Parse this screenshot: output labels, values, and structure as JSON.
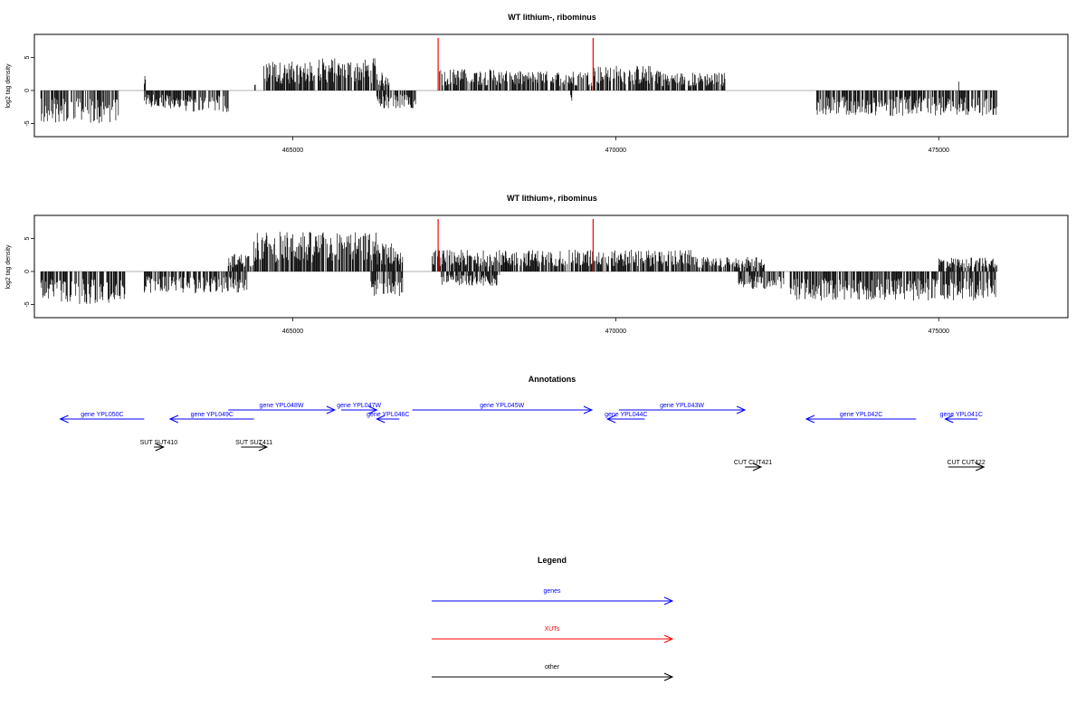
{
  "chart_data": [
    {
      "type": "bar",
      "title": "WT lithium-, ribominus",
      "ylabel": "log2 tag density",
      "xlabel": "",
      "xlim": [
        461000,
        477000
      ],
      "ylim": [
        -7,
        8.5
      ],
      "yticks": [
        -5,
        0,
        5
      ],
      "xticks": [
        465000,
        470000,
        475000
      ],
      "markers": [
        467250,
        469650
      ],
      "marker_color": "#ff0000",
      "series": [
        {
          "sign": "positive",
          "segments": [
            {
              "x0": 461100,
              "x1": 461700,
              "amp": 0.0
            },
            {
              "x0": 462700,
              "x1": 462720,
              "amp": 2.0
            },
            {
              "x0": 464400,
              "x1": 464420,
              "amp": 1.0
            },
            {
              "x0": 464550,
              "x1": 465400,
              "amp": 4.0
            },
            {
              "x0": 465400,
              "x1": 466300,
              "amp": 4.5
            },
            {
              "x0": 466300,
              "x1": 466500,
              "amp": 2.5
            },
            {
              "x0": 467250,
              "x1": 468300,
              "amp": 3.0
            },
            {
              "x0": 468300,
              "x1": 469650,
              "amp": 2.7
            },
            {
              "x0": 469650,
              "x1": 470700,
              "amp": 3.5
            },
            {
              "x0": 470700,
              "x1": 471700,
              "amp": 2.5
            },
            {
              "x0": 472300,
              "x1": 472320,
              "amp": 1.0
            },
            {
              "x0": 475300,
              "x1": 475320,
              "amp": 1.5
            }
          ]
        },
        {
          "sign": "negative",
          "segments": [
            {
              "x0": 461100,
              "x1": 462300,
              "amp": 4.5
            },
            {
              "x0": 462700,
              "x1": 463300,
              "amp": 2.5
            },
            {
              "x0": 463300,
              "x1": 464000,
              "amp": 3.0
            },
            {
              "x0": 466300,
              "x1": 466900,
              "amp": 2.5
            },
            {
              "x0": 469300,
              "x1": 469320,
              "amp": 2.0
            },
            {
              "x0": 473100,
              "x1": 475900,
              "amp": 3.5
            }
          ]
        }
      ]
    },
    {
      "type": "bar",
      "title": "WT lithium+, ribominus",
      "ylabel": "log2 tag density",
      "xlabel": "",
      "xlim": [
        461000,
        477000
      ],
      "ylim": [
        -7,
        8.5
      ],
      "yticks": [
        -5,
        0,
        5
      ],
      "xticks": [
        465000,
        470000,
        475000
      ],
      "markers": [
        467250,
        469650
      ],
      "marker_color": "#ff0000",
      "series": [
        {
          "sign": "positive",
          "segments": [
            {
              "x0": 464000,
              "x1": 464400,
              "amp": 2.5
            },
            {
              "x0": 464400,
              "x1": 466300,
              "amp": 5.5
            },
            {
              "x0": 466300,
              "x1": 466700,
              "amp": 4.0
            },
            {
              "x0": 467150,
              "x1": 468300,
              "amp": 3.0
            },
            {
              "x0": 468300,
              "x1": 469650,
              "amp": 3.0
            },
            {
              "x0": 469650,
              "x1": 471200,
              "amp": 3.0
            },
            {
              "x0": 471200,
              "x1": 472300,
              "amp": 2.0
            },
            {
              "x0": 475000,
              "x1": 475900,
              "amp": 2.0
            }
          ]
        },
        {
          "sign": "negative",
          "segments": [
            {
              "x0": 461100,
              "x1": 462400,
              "amp": 4.5
            },
            {
              "x0": 462700,
              "x1": 464300,
              "amp": 3.0
            },
            {
              "x0": 466200,
              "x1": 466700,
              "amp": 3.5
            },
            {
              "x0": 467300,
              "x1": 468200,
              "amp": 2.0
            },
            {
              "x0": 471900,
              "x1": 472600,
              "amp": 2.5
            },
            {
              "x0": 472700,
              "x1": 475900,
              "amp": 4.0
            }
          ]
        }
      ]
    }
  ],
  "annotations": {
    "title": "Annotations",
    "items": [
      {
        "label": "gene YPL050C",
        "x0": 461400,
        "x1": 462700,
        "dir": "left",
        "row": 2,
        "color": "#0000ff"
      },
      {
        "label": "gene YPL049C",
        "x0": 463100,
        "x1": 464400,
        "dir": "left",
        "row": 2,
        "color": "#0000ff"
      },
      {
        "label": "gene YPL048W",
        "x0": 464000,
        "x1": 465650,
        "dir": "right",
        "row": 1,
        "color": "#0000ff"
      },
      {
        "label": "gene YPL047W",
        "x0": 465750,
        "x1": 466300,
        "dir": "right",
        "row": 1,
        "color": "#0000ff"
      },
      {
        "label": "gene YPL046C",
        "x0": 466300,
        "x1": 466650,
        "dir": "left",
        "row": 2,
        "color": "#0000ff"
      },
      {
        "label": "gene YPL045W",
        "x0": 466850,
        "x1": 469630,
        "dir": "right",
        "row": 1,
        "color": "#0000ff"
      },
      {
        "label": "gene YPL044C",
        "x0": 469870,
        "x1": 470450,
        "dir": "left",
        "row": 2,
        "color": "#0000ff"
      },
      {
        "label": "gene YPL043W",
        "x0": 470050,
        "x1": 472000,
        "dir": "right",
        "row": 1,
        "color": "#0000ff"
      },
      {
        "label": "gene YPL042C",
        "x0": 472950,
        "x1": 474650,
        "dir": "left",
        "row": 2,
        "color": "#0000ff"
      },
      {
        "label": "gene YPL041C",
        "x0": 475100,
        "x1": 475600,
        "dir": "left",
        "row": 2,
        "color": "#0000ff"
      },
      {
        "label": "SUT SUT410",
        "x0": 462850,
        "x1": 463000,
        "dir": "right",
        "row": 3,
        "color": "#000000"
      },
      {
        "label": "SUT SUT411",
        "x0": 464200,
        "x1": 464600,
        "dir": "right",
        "row": 3,
        "color": "#000000"
      },
      {
        "label": "CUT CUT421",
        "x0": 472000,
        "x1": 472250,
        "dir": "right",
        "row": 4,
        "color": "#000000"
      },
      {
        "label": "CUT CUT422",
        "x0": 475150,
        "x1": 475700,
        "dir": "right",
        "row": 4,
        "color": "#000000"
      }
    ]
  },
  "legend": {
    "title": "Legend",
    "items": [
      {
        "label": "genes",
        "color": "#0000ff"
      },
      {
        "label": "XUTs",
        "color": "#ff0000"
      },
      {
        "label": "other",
        "color": "#000000"
      }
    ]
  }
}
